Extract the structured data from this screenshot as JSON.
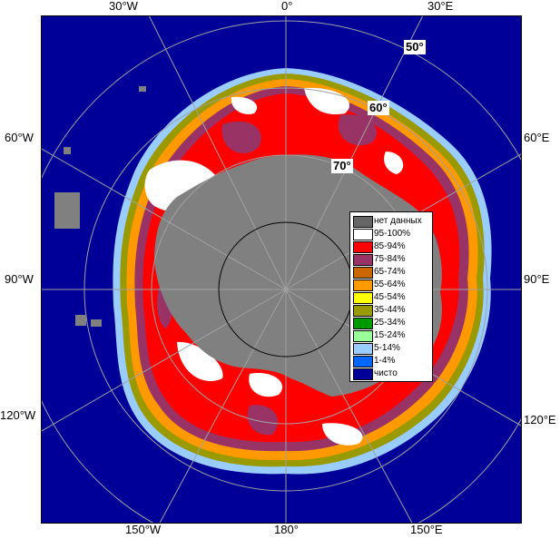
{
  "longitude_labels": {
    "top": [
      "30°W",
      "0°",
      "30°E"
    ],
    "left": [
      "60°W",
      "90°W",
      "120°W"
    ],
    "right": [
      "60°E",
      "90°E",
      "120°E"
    ],
    "bottom": [
      "150°W",
      "180°",
      "150°E"
    ]
  },
  "latitude_labels": [
    "50°",
    "60°",
    "70°"
  ],
  "legend": {
    "items": [
      {
        "label": "нет данных",
        "color": "#666666"
      },
      {
        "label": "95-100%",
        "color": "#ffffff"
      },
      {
        "label": "85-94%",
        "color": "#ff0000"
      },
      {
        "label": "75-84%",
        "color": "#993366"
      },
      {
        "label": "65-74%",
        "color": "#cc6600"
      },
      {
        "label": "55-64%",
        "color": "#ff9900"
      },
      {
        "label": "45-54%",
        "color": "#ffff00"
      },
      {
        "label": "35-44%",
        "color": "#999900"
      },
      {
        "label": "25-34%",
        "color": "#009900"
      },
      {
        "label": "15-24%",
        "color": "#99ff99"
      },
      {
        "label": "5-14%",
        "color": "#99ccff"
      },
      {
        "label": "1-4%",
        "color": "#0066ff"
      },
      {
        "label": "чисто",
        "color": "#000099"
      }
    ]
  },
  "colors": {
    "ocean": "#000099",
    "land": "#808080",
    "graticule": "#a0a0a0"
  }
}
